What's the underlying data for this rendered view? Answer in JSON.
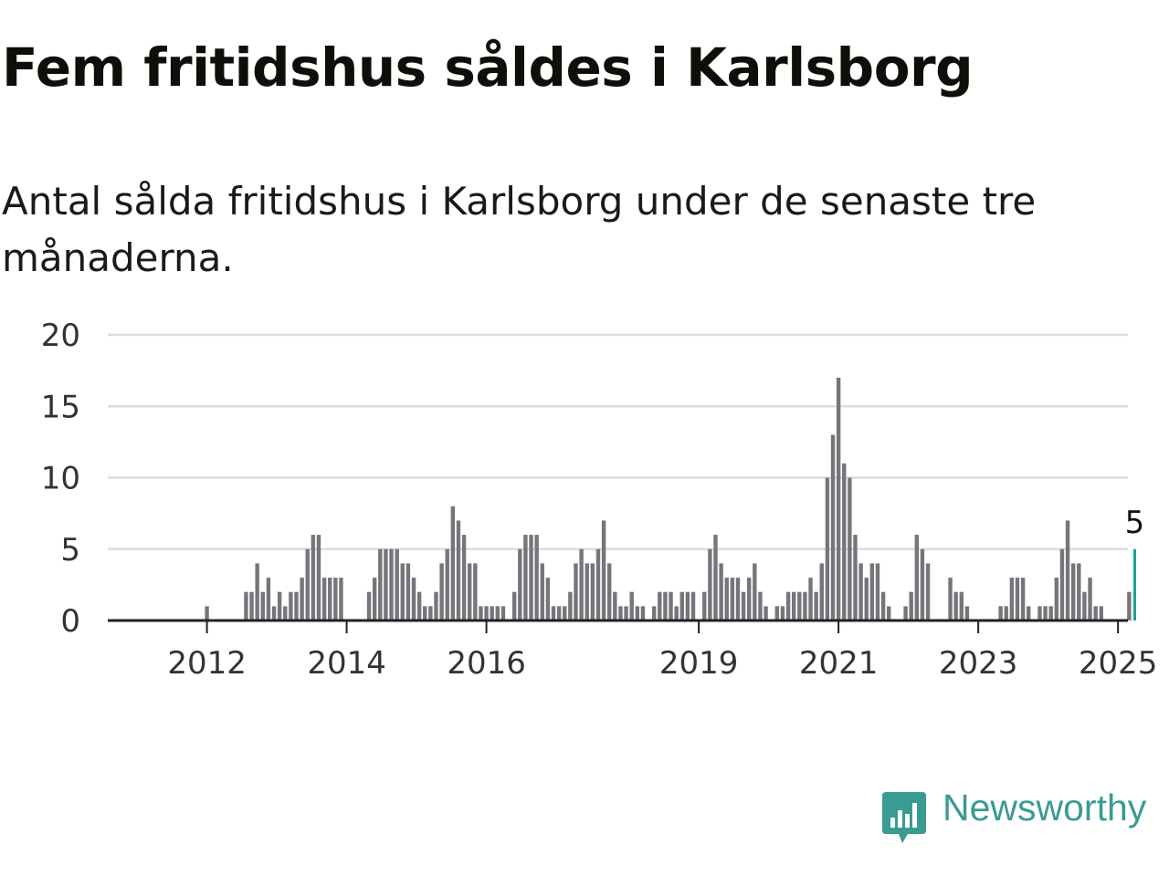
{
  "title": "Fem fritidshus såldes i Karlsborg",
  "subtitle": "Antal sålda fritidshus i Karlsborg under de senaste tre månaderna.",
  "brand": {
    "name": "Newsworthy",
    "color": "#3a9b94",
    "icon": "newsworthy-logo-icon"
  },
  "colors": {
    "bar": "#76757b",
    "highlight": "#1aa397",
    "grid": "#dddddd",
    "axis": "#222222",
    "text": "#333333"
  },
  "chart_data": {
    "type": "bar",
    "ylim": [
      0,
      20
    ],
    "yticks": [
      0,
      5,
      10,
      15,
      20
    ],
    "xticks": [
      {
        "label": "2012",
        "index": 9
      },
      {
        "label": "2014",
        "index": 34
      },
      {
        "label": "2016",
        "index": 59
      },
      {
        "label": "2019",
        "index": 97
      },
      {
        "label": "2021",
        "index": 122
      },
      {
        "label": "2023",
        "index": 147
      },
      {
        "label": "2025",
        "index": 172
      }
    ],
    "grid": true,
    "values": [
      0,
      0,
      0,
      0,
      0,
      0,
      0,
      0,
      0,
      1,
      0,
      0,
      0,
      0,
      0,
      0,
      2,
      2,
      4,
      2,
      3,
      1,
      2,
      1,
      2,
      2,
      3,
      5,
      6,
      6,
      3,
      3,
      3,
      3,
      0,
      0,
      0,
      0,
      2,
      3,
      5,
      5,
      5,
      5,
      4,
      4,
      3,
      2,
      1,
      1,
      2,
      4,
      5,
      8,
      7,
      6,
      4,
      4,
      1,
      1,
      1,
      1,
      1,
      0,
      2,
      5,
      6,
      6,
      6,
      4,
      3,
      1,
      1,
      1,
      2,
      4,
      5,
      4,
      4,
      5,
      7,
      4,
      2,
      1,
      1,
      2,
      1,
      1,
      0,
      1,
      2,
      2,
      2,
      1,
      2,
      2,
      2,
      0,
      2,
      5,
      6,
      4,
      3,
      3,
      3,
      2,
      3,
      4,
      2,
      1,
      0,
      1,
      1,
      2,
      2,
      2,
      2,
      3,
      2,
      4,
      10,
      13,
      17,
      11,
      10,
      6,
      4,
      3,
      4,
      4,
      2,
      1,
      0,
      0,
      1,
      2,
      6,
      5,
      4,
      0,
      0,
      0,
      3,
      2,
      2,
      1,
      0,
      0,
      0,
      0,
      0,
      1,
      1,
      3,
      3,
      3,
      1,
      0,
      1,
      1,
      1,
      3,
      5,
      7,
      4,
      4,
      2,
      3,
      1,
      1,
      0,
      0,
      0,
      0,
      2,
      5
    ],
    "highlight_index": 175,
    "highlight_label": "5"
  }
}
